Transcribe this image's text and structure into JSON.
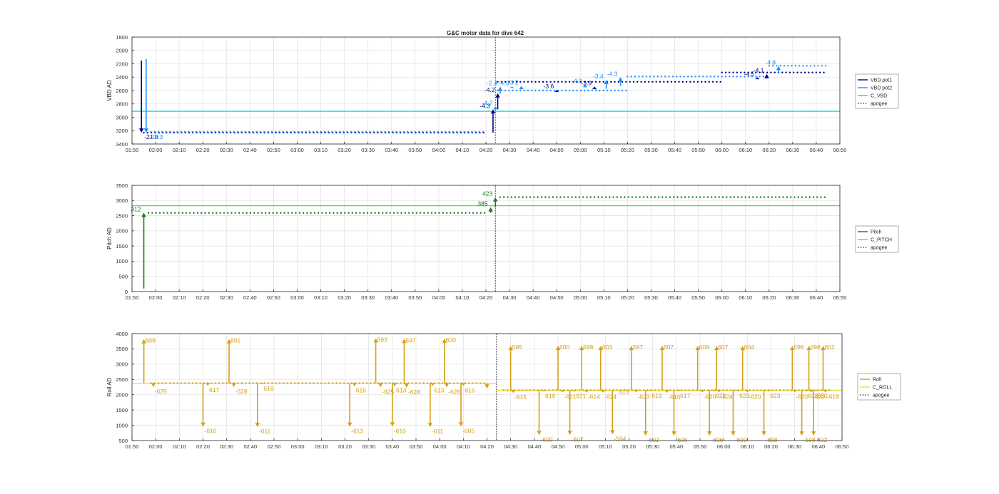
{
  "figure": {
    "title": "G&C motor data for dive 642"
  },
  "colors": {
    "vbd_pot1": "#00008b",
    "vbd_pot2": "#1e90ff",
    "c_vbd": "#19d3d3",
    "pitch": "#1a7a1a",
    "c_pitch": "#5dd55d",
    "roll": "#d4a017",
    "c_roll": "#f2e32a",
    "apogee": "#333333",
    "grid": "#e3e3e3",
    "axis": "#262626"
  },
  "chart_data": [
    {
      "type": "scatter",
      "panel": "vbd",
      "ylabel": "VBD AD",
      "ylim": [
        1800,
        3400
      ],
      "y_reversed": true,
      "yticks": [
        1800,
        2000,
        2200,
        2400,
        2600,
        2800,
        3000,
        3200,
        3400
      ],
      "xlim": [
        "01:50",
        "06:50"
      ],
      "xticks": [
        "01:50",
        "02:00",
        "02:10",
        "02:20",
        "02:30",
        "02:40",
        "02:50",
        "03:00",
        "03:10",
        "03:20",
        "03:30",
        "03:40",
        "03:50",
        "04:00",
        "04:10",
        "04:20",
        "04:30",
        "04:40",
        "04:50",
        "05:00",
        "05:10",
        "05:20",
        "05:30",
        "05:40",
        "05:50",
        "06:00",
        "06:10",
        "06:20",
        "06:30",
        "06:40",
        "06:50"
      ],
      "grid": true,
      "legend": {
        "position": "right",
        "entries": [
          "VBD pot1",
          "VBD pot2",
          "C_VBD",
          "apogee"
        ]
      },
      "apogee_x": "04:24",
      "reference_lines": [
        {
          "name": "C_VBD",
          "y": 2910
        }
      ],
      "series": [
        {
          "name": "VBD pot1",
          "segments": [
            {
              "x_start": "01:55",
              "x_end": "04:20",
              "y": 3230
            },
            {
              "x_start": "04:25",
              "x_end": "06:00",
              "y": 2470
            },
            {
              "x_start": "06:00",
              "x_end": "06:44",
              "y": 2330
            }
          ]
        },
        {
          "name": "VBD pot2",
          "segments": [
            {
              "x_start": "01:58",
              "x_end": "04:20",
              "y": 3220
            },
            {
              "x_start": "04:25",
              "x_end": "05:20",
              "y": 2600
            },
            {
              "x_start": "05:20",
              "x_end": "06:20",
              "y": 2390
            },
            {
              "x_start": "06:20",
              "x_end": "06:45",
              "y": 2230
            }
          ]
        }
      ],
      "moves": [
        {
          "series": "VBD pot1",
          "x": "01:54",
          "y_from": 2150,
          "y_to": 3230,
          "label": "-21.0"
        },
        {
          "series": "VBD pot2",
          "x": "01:56",
          "y_from": 2130,
          "y_to": 3230,
          "label": "-22.3"
        },
        {
          "series": "VBD pot1",
          "x": "04:23",
          "y_from": 3230,
          "y_to": 2880,
          "label": "-4.3"
        },
        {
          "series": "VBD pot2",
          "x": "04:24",
          "y_from": 2880,
          "y_to": 2840,
          "label": "-4.7"
        },
        {
          "series": "VBD pot1",
          "x": "04:25",
          "y_from": 2880,
          "y_to": 2640,
          "label": "-4.2"
        },
        {
          "series": "VBD pot2",
          "x": "04:26",
          "y_from": 2650,
          "y_to": 2540,
          "label": "-2.4"
        },
        {
          "series": "VBD pot2",
          "x": "04:31",
          "y_from": 2560,
          "y_to": 2540,
          "label": "-4.5"
        },
        {
          "series": "VBD pot2",
          "x": "04:35",
          "y_from": 2580,
          "y_to": 2530,
          "label": "-3.2"
        },
        {
          "series": "VBD pot1",
          "x": "04:50",
          "y_from": 2620,
          "y_to": 2590,
          "label": "-3.6"
        },
        {
          "series": "VBD pot2",
          "x": "05:02",
          "y_from": 2550,
          "y_to": 2510,
          "label": "-4.0"
        },
        {
          "series": "VBD pot1",
          "x": "05:06",
          "y_from": 2580,
          "y_to": 2540,
          "label": "-3.9"
        },
        {
          "series": "VBD pot2",
          "x": "05:11",
          "y_from": 2570,
          "y_to": 2440,
          "label": "-3.4"
        },
        {
          "series": "VBD pot2",
          "x": "05:17",
          "y_from": 2530,
          "y_to": 2400,
          "label": "-4.3"
        },
        {
          "series": "VBD pot1",
          "x": "06:15",
          "y_from": 2430,
          "y_to": 2400,
          "label": "-4.5"
        },
        {
          "series": "VBD pot1",
          "x": "06:19",
          "y_from": 2420,
          "y_to": 2350,
          "label": "-4.1"
        },
        {
          "series": "VBD pot2",
          "x": "06:24",
          "y_from": 2330,
          "y_to": 2230,
          "label": "-4.8"
        }
      ]
    },
    {
      "type": "scatter",
      "panel": "pitch",
      "ylabel": "Pitch AD",
      "ylim": [
        0,
        3500
      ],
      "y_reversed": false,
      "yticks": [
        0,
        500,
        1000,
        1500,
        2000,
        2500,
        3000,
        3500
      ],
      "xlim": [
        "01:50",
        "06:50"
      ],
      "xticks": [
        "01:50",
        "02:00",
        "02:10",
        "02:20",
        "02:30",
        "02:40",
        "02:50",
        "03:00",
        "03:10",
        "03:20",
        "03:30",
        "03:40",
        "03:50",
        "04:00",
        "04:10",
        "04:20",
        "04:30",
        "04:40",
        "04:50",
        "05:00",
        "05:10",
        "05:20",
        "05:30",
        "05:40",
        "05:50",
        "06:00",
        "06:10",
        "06:20",
        "06:30",
        "06:40",
        "06:50"
      ],
      "grid": true,
      "legend": {
        "position": "right",
        "entries": [
          "Pitch",
          "C_PITCH",
          "apogee"
        ]
      },
      "apogee_x": "04:24",
      "reference_lines": [
        {
          "name": "C_PITCH",
          "y": 2830
        }
      ],
      "series": [
        {
          "name": "Pitch",
          "segments": [
            {
              "x_start": "01:57",
              "x_end": "04:20",
              "y": 2590
            },
            {
              "x_start": "04:26",
              "x_end": "06:44",
              "y": 3110
            }
          ]
        }
      ],
      "moves": [
        {
          "series": "Pitch",
          "x": "01:55",
          "y_from": 100,
          "y_to": 2600,
          "label": "312"
        },
        {
          "series": "Pitch",
          "x": "04:22",
          "y_from": 2590,
          "y_to": 2780,
          "label": "385"
        },
        {
          "series": "Pitch",
          "x": "04:24",
          "y_from": 2780,
          "y_to": 3110,
          "label": "423"
        }
      ]
    },
    {
      "type": "scatter",
      "panel": "roll",
      "ylabel": "Roll AD",
      "ylim": [
        500,
        4000
      ],
      "y_reversed": false,
      "yticks": [
        500,
        1000,
        1500,
        2000,
        2500,
        3000,
        3500,
        4000
      ],
      "xlim": [
        "01:50",
        "06:50"
      ],
      "xticks": [
        "01:50",
        "02:00",
        "02:10",
        "02:20",
        "02:30",
        "02:40",
        "02:50",
        "03:00",
        "03:10",
        "03:20",
        "03:30",
        "03:40",
        "03:50",
        "04:00",
        "04:10",
        "04:20",
        "04:30",
        "04:40",
        "04:50",
        "05:00",
        "05:10",
        "05:20",
        "05:30",
        "05:40",
        "05:50",
        "06:00",
        "06:10",
        "06:20",
        "06:30",
        "06:40",
        "06:50"
      ],
      "grid": true,
      "legend": {
        "position": "right",
        "entries": [
          "Roll",
          "C_ROLL",
          "apogee"
        ]
      },
      "apogee_x": "04:24",
      "reference_lines": [
        {
          "name": "C_ROLL",
          "x_start": "01:50",
          "x_end": "04:24",
          "y": 2370
        },
        {
          "name": "C_ROLL",
          "x_start": "04:24",
          "x_end": "06:50",
          "y": 2150
        }
      ],
      "series": [
        {
          "name": "Roll",
          "segments": [
            {
              "x_start": "01:58",
              "x_end": "04:20",
              "y": 2380
            },
            {
              "x_start": "04:27",
              "x_end": "06:45",
              "y": 2150
            }
          ]
        }
      ],
      "spikes": [
        {
          "x": "01:55",
          "peak": 3820,
          "label": "609"
        },
        {
          "x": "01:59",
          "peak": 2250,
          "label": "-625"
        },
        {
          "x": "02:20",
          "peak": 950,
          "label": "-610"
        },
        {
          "x": "02:22",
          "peak": 2300,
          "label": "617"
        },
        {
          "x": "02:31",
          "peak": 3820,
          "label": "601"
        },
        {
          "x": "02:33",
          "peak": 2250,
          "label": "-628"
        },
        {
          "x": "02:43",
          "peak": 940,
          "label": "-611"
        },
        {
          "x": "02:45",
          "peak": 2340,
          "label": "616"
        },
        {
          "x": "03:22",
          "peak": 950,
          "label": "-613"
        },
        {
          "x": "03:24",
          "peak": 2280,
          "label": "615"
        },
        {
          "x": "03:33",
          "peak": 3850,
          "label": "593"
        },
        {
          "x": "03:35",
          "peak": 2240,
          "label": "-625"
        },
        {
          "x": "03:40",
          "peak": 960,
          "label": "-610"
        },
        {
          "x": "03:41",
          "peak": 2280,
          "label": "613"
        },
        {
          "x": "03:45",
          "peak": 3830,
          "label": "597"
        },
        {
          "x": "03:46",
          "peak": 2230,
          "label": "-628"
        },
        {
          "x": "03:56",
          "peak": 940,
          "label": "-611"
        },
        {
          "x": "03:57",
          "peak": 2290,
          "label": "613"
        },
        {
          "x": "04:02",
          "peak": 3840,
          "label": "600"
        },
        {
          "x": "04:03",
          "peak": 2240,
          "label": "-626"
        },
        {
          "x": "04:09",
          "peak": 960,
          "label": "-605"
        },
        {
          "x": "04:10",
          "peak": 2290,
          "label": "615"
        },
        {
          "x": "04:20",
          "peak": 2200,
          "label": ""
        },
        {
          "x": "04:30",
          "peak": 3600,
          "label": "595"
        },
        {
          "x": "04:31",
          "peak": 2060,
          "label": "-615"
        },
        {
          "x": "04:42",
          "peak": 680,
          "label": "-600"
        },
        {
          "x": "04:44",
          "peak": 2100,
          "label": "619"
        },
        {
          "x": "04:50",
          "peak": 3600,
          "label": "600"
        },
        {
          "x": "04:52",
          "peak": 2080,
          "label": "-621"
        },
        {
          "x": "04:55",
          "peak": 680,
          "label": "-607"
        },
        {
          "x": "04:57",
          "peak": 2100,
          "label": "621"
        },
        {
          "x": "05:00",
          "peak": 3600,
          "label": "599"
        },
        {
          "x": "05:02",
          "peak": 2070,
          "label": "-614"
        },
        {
          "x": "05:08",
          "peak": 3600,
          "label": "603"
        },
        {
          "x": "05:09",
          "peak": 2070,
          "label": "-624"
        },
        {
          "x": "05:13",
          "peak": 700,
          "label": "-594"
        },
        {
          "x": "05:15",
          "peak": 2150,
          "label": "613"
        },
        {
          "x": "05:21",
          "peak": 3600,
          "label": "597"
        },
        {
          "x": "05:23",
          "peak": 2080,
          "label": "-623"
        },
        {
          "x": "05:27",
          "peak": 660,
          "label": "-602"
        },
        {
          "x": "05:29",
          "peak": 2110,
          "label": "619"
        },
        {
          "x": "05:34",
          "peak": 3600,
          "label": "607"
        },
        {
          "x": "05:36",
          "peak": 2060,
          "label": "-615"
        },
        {
          "x": "05:39",
          "peak": 660,
          "label": "-606"
        },
        {
          "x": "05:41",
          "peak": 2110,
          "label": "617"
        },
        {
          "x": "05:49",
          "peak": 3600,
          "label": "609"
        },
        {
          "x": "05:51",
          "peak": 2080,
          "label": "-620"
        },
        {
          "x": "05:54",
          "peak": 660,
          "label": "-606"
        },
        {
          "x": "05:56",
          "peak": 2110,
          "label": "622"
        },
        {
          "x": "05:57",
          "peak": 3600,
          "label": "607"
        },
        {
          "x": "05:58",
          "peak": 2080,
          "label": "-624"
        },
        {
          "x": "06:04",
          "peak": 660,
          "label": "-609"
        },
        {
          "x": "06:06",
          "peak": 2110,
          "label": "623"
        },
        {
          "x": "06:08",
          "peak": 3600,
          "label": "604"
        },
        {
          "x": "06:10",
          "peak": 2080,
          "label": "-620"
        },
        {
          "x": "06:17",
          "peak": 660,
          "label": "-608"
        },
        {
          "x": "06:19",
          "peak": 2110,
          "label": "623"
        },
        {
          "x": "06:29",
          "peak": 3600,
          "label": "598"
        },
        {
          "x": "06:30",
          "peak": 2080,
          "label": "-620"
        },
        {
          "x": "06:33",
          "peak": 660,
          "label": "-598"
        },
        {
          "x": "06:35",
          "peak": 2110,
          "label": "623"
        },
        {
          "x": "06:36",
          "peak": 3600,
          "label": "598"
        },
        {
          "x": "06:37",
          "peak": 2080,
          "label": "-620"
        },
        {
          "x": "06:38",
          "peak": 660,
          "label": "-602"
        },
        {
          "x": "06:39",
          "peak": 2110,
          "label": "620"
        },
        {
          "x": "06:42",
          "peak": 3600,
          "label": "602"
        },
        {
          "x": "06:43",
          "peak": 2080,
          "label": "-618"
        }
      ]
    }
  ]
}
